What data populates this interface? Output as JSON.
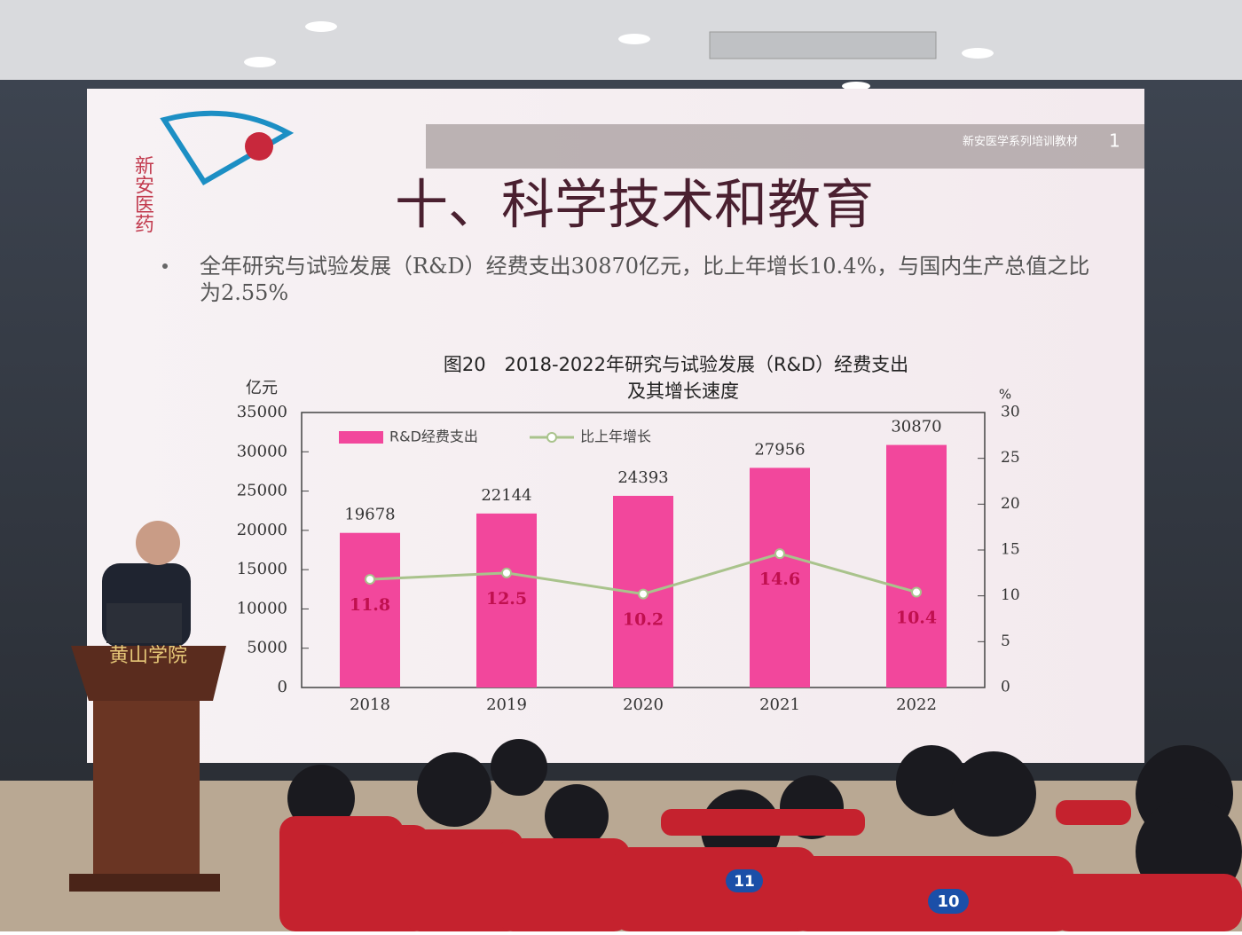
{
  "slide": {
    "logo_text": "新安医药",
    "banner": "新安医学系列培训教材",
    "page_number": "1",
    "title": "十、科学技术和教育",
    "bullet": "全年研究与试验发展（R&D）经费支出30870亿元，比上年增长10.4%，与国内生产总值之比为2.55%"
  },
  "chart_data": {
    "type": "bar",
    "title": "图20　2018-2022年研究与试验发展（R&D）经费支出",
    "subtitle": "及其增长速度",
    "y_label": "亿元",
    "y2_label": "%",
    "categories": [
      "2018",
      "2019",
      "2020",
      "2021",
      "2022"
    ],
    "series": [
      {
        "name": "R&D经费支出",
        "color": "#f2479c",
        "values": [
          19678,
          22144,
          24393,
          27956,
          30870
        ]
      },
      {
        "name": "比上年增长",
        "color": "#a9c38c",
        "type": "line",
        "axis": "y2",
        "values": [
          11.8,
          12.5,
          10.2,
          14.6,
          10.4
        ]
      }
    ],
    "ylim": [
      0,
      35000
    ],
    "yticks": [
      0,
      5000,
      10000,
      15000,
      20000,
      25000,
      30000,
      35000
    ],
    "y2lim": [
      0,
      30
    ],
    "y2ticks": [
      0,
      5,
      10,
      15,
      20,
      25,
      30
    ],
    "legend": "top-left"
  },
  "scene": {
    "podium": "黄山学院",
    "seat_numbers": [
      "11",
      "10"
    ]
  }
}
